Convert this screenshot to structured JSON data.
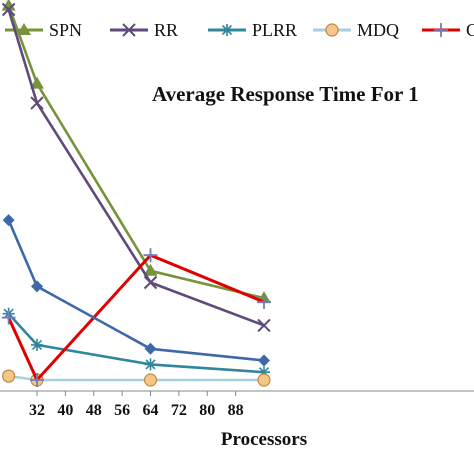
{
  "chart_data": {
    "type": "line",
    "title": "Average Response Time For 1",
    "xlabel": "Processors",
    "ylabel": "",
    "x_ticks": [
      32,
      40,
      48,
      56,
      64,
      72,
      80,
      88
    ],
    "xlim": [
      24,
      96
    ],
    "ylim": [
      0,
      100
    ],
    "grid": false,
    "legend": {
      "position": "top",
      "entries": [
        "SPN",
        "RR",
        "PLRR",
        "MDQ",
        "C"
      ]
    },
    "series": [
      {
        "name": "SPN",
        "color": "#77933c",
        "marker": "triangle",
        "x": [
          24,
          32,
          64,
          96
        ],
        "y": [
          96,
          76,
          28,
          21
        ]
      },
      {
        "name": "RR",
        "color": "#604a7b",
        "marker": "x",
        "x": [
          24,
          32,
          64,
          96
        ],
        "y": [
          95,
          71,
          25,
          14
        ]
      },
      {
        "name": "PLRR",
        "color": "#31859c",
        "marker": "asterisk",
        "x": [
          24,
          32,
          64,
          96
        ],
        "y": [
          17,
          9,
          4,
          2
        ]
      },
      {
        "name": "MDQ",
        "color": "#a6cfe0",
        "marker": "circle",
        "marker_fill": "#f5c58a",
        "marker_stroke": "#c08a3a",
        "x": [
          24,
          32,
          64,
          96
        ],
        "y": [
          1,
          0,
          0,
          0
        ]
      },
      {
        "name": "C",
        "color": "#e00000",
        "marker": "plus",
        "x": [
          24,
          32,
          64,
          96
        ],
        "y": [
          16,
          0,
          32,
          20
        ]
      },
      {
        "name": "",
        "color": "#3f68a8",
        "marker": "diamond",
        "x": [
          24,
          32,
          64,
          96
        ],
        "y": [
          41,
          24,
          8,
          5
        ]
      }
    ]
  }
}
